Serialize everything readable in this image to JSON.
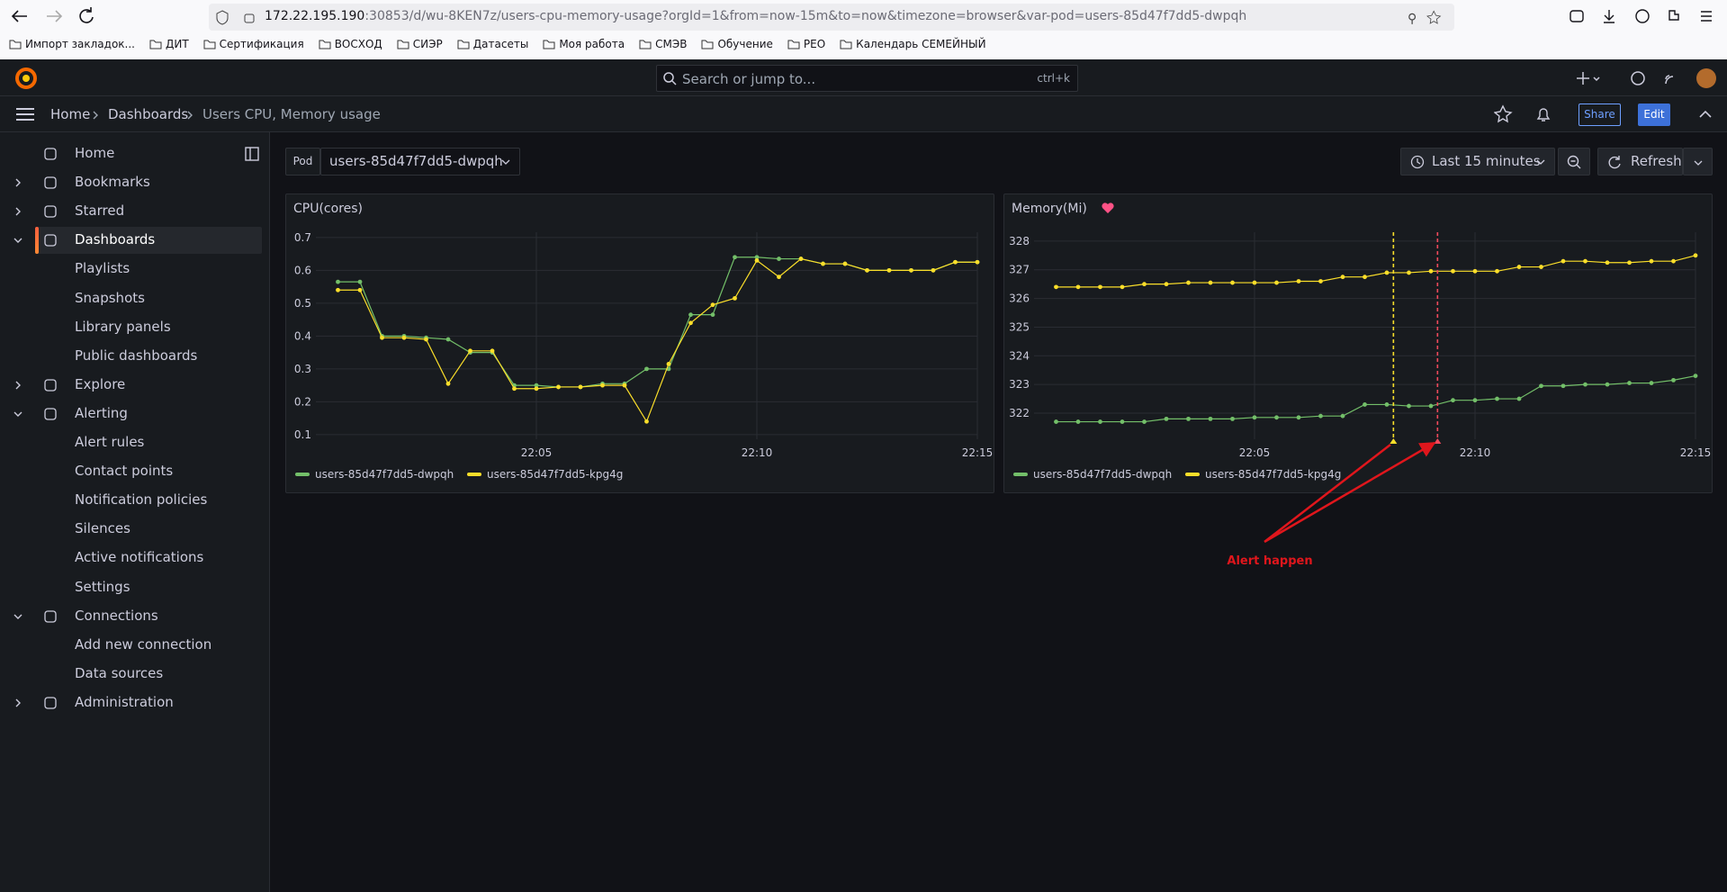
{
  "browser": {
    "url_host": "172.22.195.190",
    "url_rest": ":30853/d/wu-8KEN7z/users-cpu-memory-usage?orgId=1&from=now-15m&to=now&timezone=browser&var-pod=users-85d47f7dd5-dwpqh",
    "bookmarks": [
      "Импорт закладок...",
      "ДИТ",
      "Сертификация",
      "ВОСХОД",
      "СИЭР",
      "Датасеты",
      "Моя работа",
      "СМЭВ",
      "Обучение",
      "РЕО",
      "Календарь СЕМЕЙНЫЙ"
    ]
  },
  "header": {
    "search": "Search or jump to...",
    "shortcut": "ctrl+k"
  },
  "breadcrumbs": [
    "Home",
    "Dashboards",
    "Users CPU, Memory usage"
  ],
  "actions": {
    "share": "Share",
    "edit": "Edit"
  },
  "sidebar": [
    {
      "label": "Home"
    },
    {
      "label": "Bookmarks",
      "expanded": false
    },
    {
      "label": "Starred",
      "expanded": false
    },
    {
      "label": "Dashboards",
      "expanded": true,
      "active": true
    },
    {
      "label": "Playlists",
      "child": true
    },
    {
      "label": "Snapshots",
      "child": true
    },
    {
      "label": "Library panels",
      "child": true
    },
    {
      "label": "Public dashboards",
      "child": true
    },
    {
      "label": "Explore",
      "expanded": false
    },
    {
      "label": "Alerting",
      "expanded": true
    },
    {
      "label": "Alert rules",
      "child": true
    },
    {
      "label": "Contact points",
      "child": true
    },
    {
      "label": "Notification policies",
      "child": true
    },
    {
      "label": "Silences",
      "child": true
    },
    {
      "label": "Active notifications",
      "child": true
    },
    {
      "label": "Settings",
      "child": true
    },
    {
      "label": "Connections",
      "expanded": true
    },
    {
      "label": "Add new connection",
      "child": true
    },
    {
      "label": "Data sources",
      "child": true
    },
    {
      "label": "Administration",
      "expanded": false
    }
  ],
  "toolbar": {
    "variable_label": "Pod",
    "variable_value": "users-85d47f7dd5-dwpqh",
    "time_range": "Last 15 minutes",
    "refresh": "Refresh"
  },
  "panels": [
    {
      "type": "line",
      "title": "CPU(cores)",
      "x": [
        0.5,
        1,
        1.5,
        2,
        2.5,
        3,
        3.5,
        4,
        4.5,
        5,
        5.5,
        6,
        6.5,
        7,
        7.5,
        8,
        8.5,
        9,
        9.5,
        10,
        10.5,
        11,
        11.5,
        12,
        12.5,
        13,
        13.5,
        14,
        14.5,
        15
      ],
      "xlim": [
        0,
        15
      ],
      "xticks": [
        {
          "value": 5,
          "label": "22:05"
        },
        {
          "value": 10,
          "label": "22:10"
        },
        {
          "value": 15,
          "label": "22:15"
        }
      ],
      "ylim": [
        0.086,
        0.716
      ],
      "yticks": [
        0.1,
        0.2,
        0.3,
        0.4,
        0.5,
        0.6,
        0.7
      ],
      "grid": true,
      "series": [
        {
          "name": "users-85d47f7dd5-dwpqh",
          "color": "#73bf69",
          "values": [
            0.565,
            0.565,
            0.4,
            0.4,
            0.395,
            0.39,
            0.35,
            0.35,
            0.25,
            0.25,
            0.245,
            0.245,
            0.255,
            0.255,
            0.3,
            0.3,
            0.465,
            0.465,
            0.64,
            0.64,
            0.635,
            0.635,
            0.62,
            0.62,
            0.6,
            0.6,
            0.6,
            0.6,
            0.625,
            0.625
          ]
        },
        {
          "name": "users-85d47f7dd5-kpg4g",
          "color": "#fade2a",
          "values": [
            0.54,
            0.54,
            0.395,
            0.395,
            0.39,
            0.255,
            0.355,
            0.355,
            0.24,
            0.24,
            0.245,
            0.245,
            0.25,
            0.25,
            0.14,
            0.315,
            0.44,
            0.495,
            0.515,
            0.63,
            0.58,
            0.635,
            0.62,
            0.62,
            0.6,
            0.6,
            0.6,
            0.6,
            0.625,
            0.625
          ]
        }
      ]
    },
    {
      "type": "line",
      "title": "Memory(Mi)",
      "x": [
        0.5,
        1,
        1.5,
        2,
        2.5,
        3,
        3.5,
        4,
        4.5,
        5,
        5.5,
        6,
        6.5,
        7,
        7.5,
        8,
        8.5,
        9,
        9.5,
        10,
        10.5,
        11,
        11.5,
        12,
        12.5,
        13,
        13.5,
        14,
        14.5,
        15
      ],
      "xlim": [
        0,
        15
      ],
      "xticks": [
        {
          "value": 5,
          "label": "22:05"
        },
        {
          "value": 10,
          "label": "22:10"
        },
        {
          "value": 15,
          "label": "22:15"
        }
      ],
      "ylim": [
        321.09,
        328.31
      ],
      "yticks": [
        322,
        323,
        324,
        325,
        326,
        327,
        328
      ],
      "grid": true,
      "series": [
        {
          "name": "users-85d47f7dd5-dwpqh",
          "color": "#73bf69",
          "values": [
            321.7,
            321.7,
            321.7,
            321.7,
            321.7,
            321.8,
            321.8,
            321.8,
            321.8,
            321.85,
            321.85,
            321.85,
            321.9,
            321.9,
            322.3,
            322.3,
            322.25,
            322.25,
            322.45,
            322.45,
            322.5,
            322.5,
            322.95,
            322.95,
            323.0,
            323.0,
            323.05,
            323.05,
            323.15,
            323.3
          ]
        },
        {
          "name": "users-85d47f7dd5-kpg4g",
          "color": "#fade2a",
          "values": [
            326.4,
            326.4,
            326.4,
            326.4,
            326.5,
            326.5,
            326.55,
            326.55,
            326.55,
            326.55,
            326.55,
            326.6,
            326.6,
            326.75,
            326.75,
            326.9,
            326.9,
            326.95,
            326.95,
            326.95,
            326.95,
            327.1,
            327.1,
            327.3,
            327.3,
            327.25,
            327.25,
            327.3,
            327.3,
            327.5
          ]
        }
      ],
      "annotations": [
        {
          "x": 8.15,
          "color": "#fade2a"
        },
        {
          "x": 9.15,
          "color": "#f2495c"
        }
      ]
    }
  ],
  "annotation_note": "Alert happen"
}
